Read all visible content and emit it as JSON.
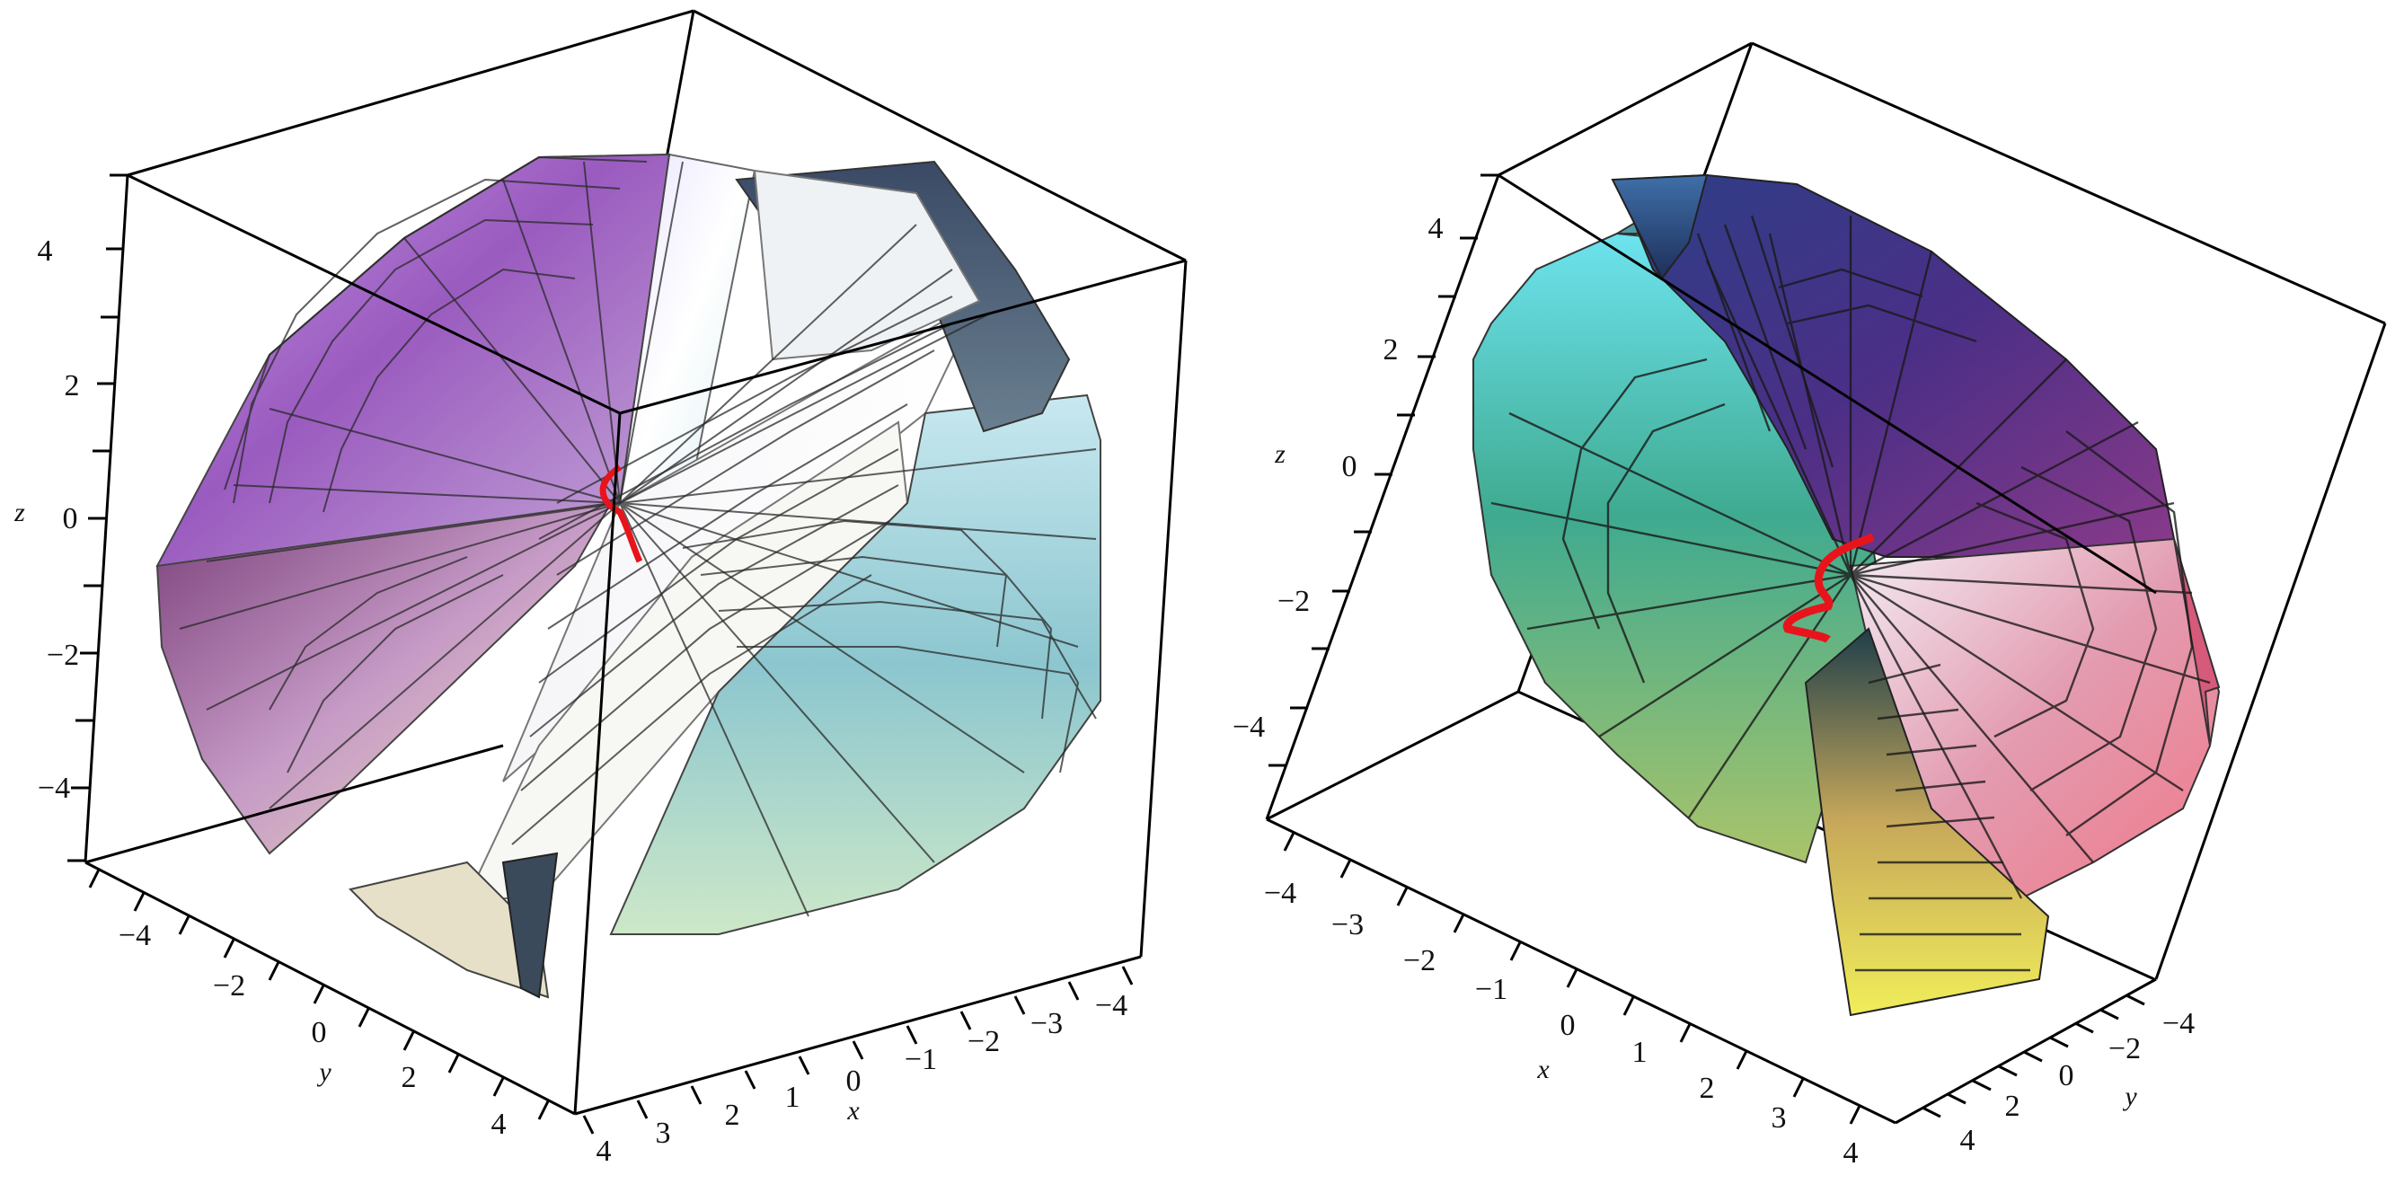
{
  "plots": [
    {
      "axes": {
        "z": {
          "label": "z",
          "ticks": [
            "4",
            "2",
            "0",
            "−2",
            "−4"
          ]
        },
        "y": {
          "label": "y",
          "ticks": [
            "−4",
            "−2",
            "0",
            "2",
            "4"
          ]
        },
        "x": {
          "label": "x",
          "ticks": [
            "4",
            "3",
            "2",
            "1",
            "0",
            "−1",
            "−2",
            "−3",
            "−4"
          ]
        }
      },
      "curve_color": "#e8141b"
    },
    {
      "axes": {
        "z": {
          "label": "z",
          "ticks": [
            "4",
            "2",
            "0",
            "−2",
            "−4"
          ]
        },
        "x": {
          "label": "x",
          "ticks": [
            "−4",
            "−3",
            "−2",
            "−1",
            "0",
            "1",
            "2",
            "3",
            "4"
          ]
        },
        "y": {
          "label": "y",
          "ticks": [
            "−4",
            "−2",
            "0",
            "2",
            "4"
          ]
        }
      },
      "curve_color": "#e8141b"
    }
  ]
}
